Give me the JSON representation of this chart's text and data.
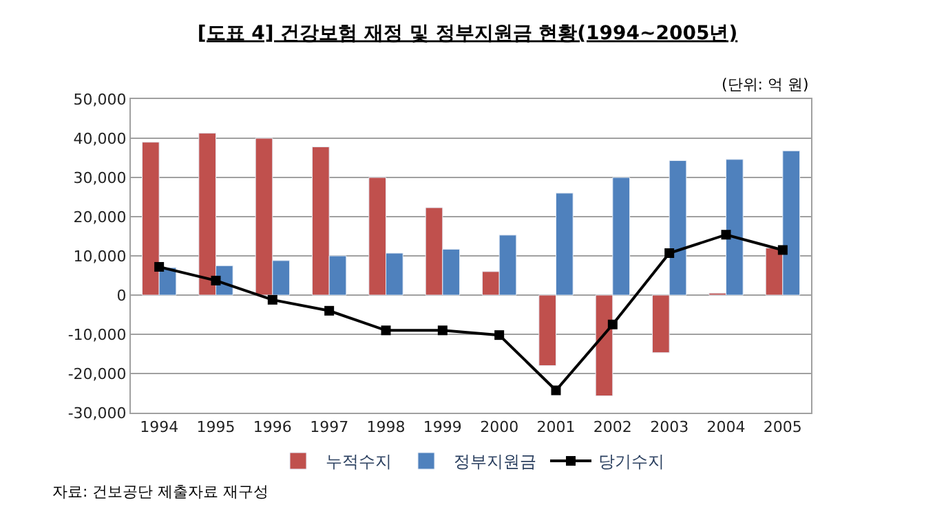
{
  "chart_data": {
    "type": "bar",
    "title": "[도표 4] 건강보험 재정 및 정부지원금 현황(1994~2005년)",
    "categories": [
      "1994",
      "1995",
      "1996",
      "1997",
      "1998",
      "1999",
      "2000",
      "2001",
      "2002",
      "2003",
      "2004",
      "2005"
    ],
    "series": [
      {
        "name": "누적수지",
        "color": "#c0504d",
        "values": [
          39000,
          41300,
          40000,
          37800,
          30000,
          22300,
          6000,
          -18000,
          -25700,
          -14700,
          500,
          12000
        ]
      },
      {
        "name": "정부지원금",
        "color": "#4f81bd",
        "values": [
          7000,
          7500,
          8800,
          10000,
          10700,
          11700,
          15300,
          26000,
          30000,
          34300,
          34600,
          36800
        ]
      },
      {
        "name": "당기수지",
        "type": "line",
        "color": "#000000",
        "marker": "square",
        "values": [
          7200,
          3700,
          -1200,
          -4000,
          -9000,
          -9000,
          -10200,
          -24300,
          -7500,
          10700,
          15400,
          11500
        ]
      }
    ],
    "ylim": [
      -30000,
      50000
    ],
    "yticks": [
      {
        "value": -30000,
        "label": "-30,000"
      },
      {
        "value": -20000,
        "label": "-20,000"
      },
      {
        "value": -10000,
        "label": "-10,000"
      },
      0,
      {
        "value": 10000,
        "label": "10,000"
      },
      {
        "value": 20000,
        "label": "20,000"
      },
      {
        "value": 30000,
        "label": "30,000"
      },
      {
        "value": 40000,
        "label": "40,000"
      },
      {
        "value": 50000,
        "label": "50,000"
      }
    ],
    "grid": "y",
    "legend": "bottom",
    "annotations": [
      "(단위: 억 원)",
      "자료: 건보공단 제출자료 재구성"
    ]
  }
}
